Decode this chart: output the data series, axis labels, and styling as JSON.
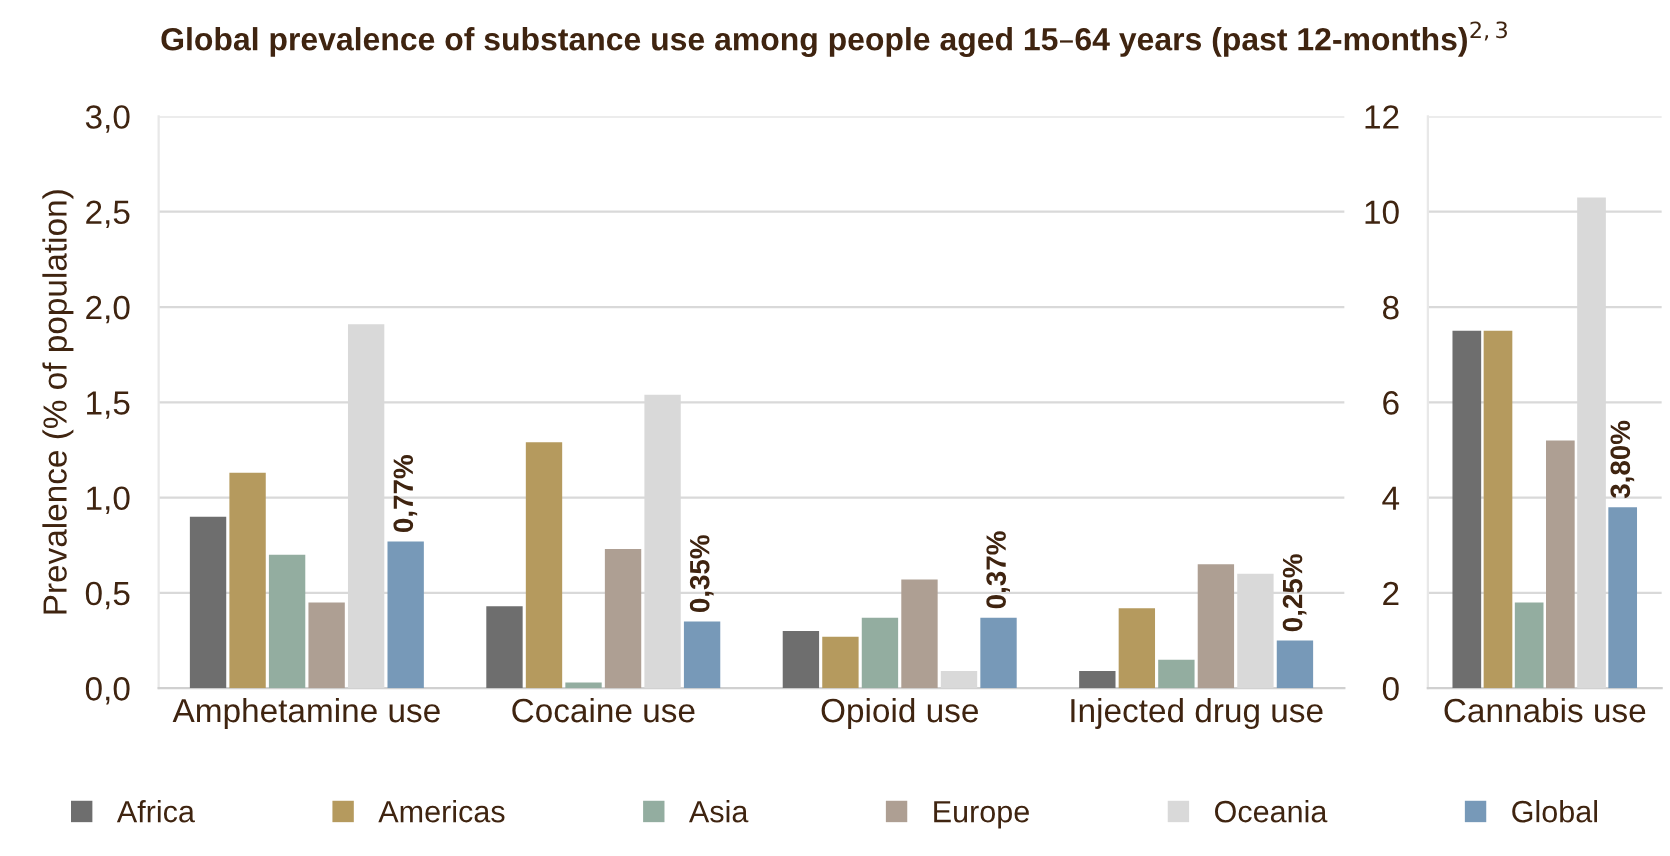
{
  "chart_data": [
    {
      "type": "bar",
      "title": "Global prevalence of substance use among people aged 15–64 years (past 12-months)$^{2,3}$",
      "ylabel": "Prevalence (% of population)",
      "categories": [
        "Amphetamine use",
        "Cocaine use",
        "Opioid use",
        "Injected drug use"
      ],
      "series": [
        {
          "name": "Africa",
          "color": "#6e6e6e",
          "values": [
            0.9,
            0.43,
            0.3,
            0.09
          ]
        },
        {
          "name": "Americas",
          "color": "#b59a5e",
          "values": [
            1.13,
            1.29,
            0.27,
            0.42
          ]
        },
        {
          "name": "Asia",
          "color": "#93ada0",
          "values": [
            0.7,
            0.03,
            0.37,
            0.15
          ]
        },
        {
          "name": "Europe",
          "color": "#ae9f93",
          "values": [
            0.45,
            0.73,
            0.57,
            0.65
          ]
        },
        {
          "name": "Oceania",
          "color": "#d9d9d9",
          "values": [
            1.91,
            1.54,
            0.09,
            0.6
          ]
        },
        {
          "name": "Global",
          "color": "#7799b8",
          "values": [
            0.77,
            0.35,
            0.37,
            0.25
          ],
          "value_labels": [
            "0,77%",
            "0,35%",
            "0,37%",
            "0,25%"
          ]
        }
      ],
      "ylim": [
        0,
        3
      ],
      "yticks": [
        {
          "value": 0,
          "label": "0,0"
        },
        {
          "value": 0.5,
          "label": "0,5"
        },
        {
          "value": 1,
          "label": "1,0"
        },
        {
          "value": 1.5,
          "label": "1,5"
        },
        {
          "value": 2,
          "label": "2,0"
        },
        {
          "value": 2.5,
          "label": "2,5"
        },
        {
          "value": 3,
          "label": "3,0"
        }
      ],
      "grid": "y",
      "legend": "bottom"
    },
    {
      "type": "bar",
      "categories": [
        "Cannabis use"
      ],
      "series": [
        {
          "color": "#6e6e6e",
          "values": [
            7.5
          ]
        },
        {
          "color": "#b59a5e",
          "values": [
            7.5
          ]
        },
        {
          "color": "#93ada0",
          "values": [
            1.8
          ]
        },
        {
          "color": "#ae9f93",
          "values": [
            5.2
          ]
        },
        {
          "color": "#d9d9d9",
          "values": [
            10.3
          ]
        },
        {
          "color": "#7799b8",
          "values": [
            3.8
          ],
          "value_labels": [
            "3,80%"
          ]
        }
      ],
      "ylim": [
        0,
        12
      ],
      "yticks": [
        0,
        2,
        4,
        6,
        8,
        10,
        12
      ],
      "grid": "y",
      "legend": false
    }
  ]
}
